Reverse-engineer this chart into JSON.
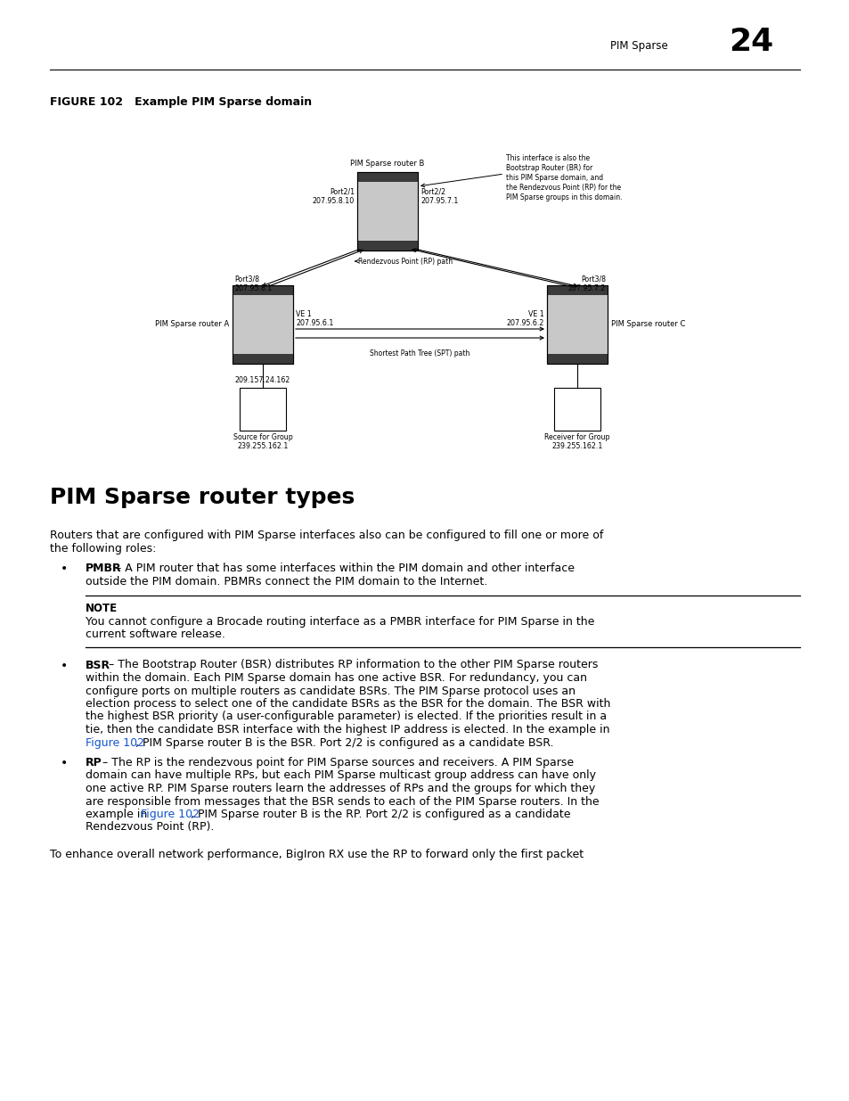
{
  "page_header_text": "PIM Sparse",
  "page_number": "24",
  "figure_label": "FIGURE 102   Example PIM Sparse domain",
  "section_title": "PIM Sparse router types",
  "intro_line1": "Routers that are configured with PIM Sparse interfaces also can be configured to fill one or more of",
  "intro_line2": "the following roles:",
  "bullet1_bold": "PMBR",
  "bullet1_rest": " – A PIM router that has some interfaces within the PIM domain and other interface",
  "bullet1_line2": "outside the PIM domain. PBMRs connect the PIM domain to the Internet.",
  "note_label": "NOTE",
  "note_line1": "You cannot configure a Brocade routing interface as a PMBR interface for PIM Sparse in the",
  "note_line2": "current software release.",
  "bullet2_bold": "BSR",
  "bullet2_l1": " – The Bootstrap Router (BSR) distributes RP information to the other PIM Sparse routers",
  "bullet2_l2": "within the domain. Each PIM Sparse domain has one active BSR. For redundancy, you can",
  "bullet2_l3": "configure ports on multiple routers as candidate BSRs. The PIM Sparse protocol uses an",
  "bullet2_l4": "election process to select one of the candidate BSRs as the BSR for the domain. The BSR with",
  "bullet2_l5": "the highest BSR priority (a user-configurable parameter) is elected. If the priorities result in a",
  "bullet2_l6": "tie, then the candidate BSR interface with the highest IP address is elected. In the example in",
  "bullet2_l7_link": "Figure 102",
  "bullet2_l7_rest": ", PIM Sparse router B is the BSR. Port 2/2 is configured as a candidate BSR.",
  "bullet3_bold": "RP",
  "bullet3_l1": " – The RP is the rendezvous point for PIM Sparse sources and receivers. A PIM Sparse",
  "bullet3_l2": "domain can have multiple RPs, but each PIM Sparse multicast group address can have only",
  "bullet3_l3": "one active RP. PIM Sparse routers learn the addresses of RPs and the groups for which they",
  "bullet3_l4": "are responsible from messages that the BSR sends to each of the PIM Sparse routers. In the",
  "bullet3_l5_pre": "example in ",
  "bullet3_l5_link": "Figure 102",
  "bullet3_l5_rest": ", PIM Sparse router B is the RP. Port 2/2 is configured as a candidate",
  "bullet3_l6": "Rendezvous Point (RP).",
  "last_text": "To enhance overall network performance, BigIron RX use the RP to forward only the first packet",
  "figure102_link_color": "#1155cc",
  "background_color": "#ffffff",
  "router_b_label": "PIM Sparse router B",
  "router_a_label": "PIM Sparse router A",
  "router_c_label": "PIM Sparse router C",
  "router_b_port1_l1": "Port2/1",
  "router_b_port1_l2": "207.95.8.10",
  "router_b_port2_l1": "Port2/2",
  "router_b_port2_l2": "207.95.7.1",
  "router_a_port_l1": "Port3/8",
  "router_a_port_l2": "207.95.8.1",
  "router_c_port_l1": "Port3/8",
  "router_c_port_l2": "207.95.7.2",
  "router_a_ve_l1": "VE 1",
  "router_a_ve_l2": "207.95.6.1",
  "router_c_ve_l1": "VE 1",
  "router_c_ve_l2": "207.95.6.2",
  "router_a_src_ip": "209.157.24.162",
  "source_l1": "Source for Group",
  "source_l2": "239.255.162.1",
  "receiver_l1": "Receiver for Group",
  "receiver_l2": "239.255.162.1",
  "rp_path_label": "Rendezvous Point (RP) path",
  "spt_path_label": "Shortest Path Tree (SPT) path",
  "bsr_note_l1": "This interface is also the",
  "bsr_note_l2": "Bootstrap Router (BR) for",
  "bsr_note_l3": "this PIM Sparse domain, and",
  "bsr_note_l4": "the Rendezvous Point (RP) for the",
  "bsr_note_l5": "PIM Sparse groups in this domain.",
  "router_fill": "#c8c8c8",
  "router_stripe": "#3a3a3a",
  "router_stroke": "#000000"
}
